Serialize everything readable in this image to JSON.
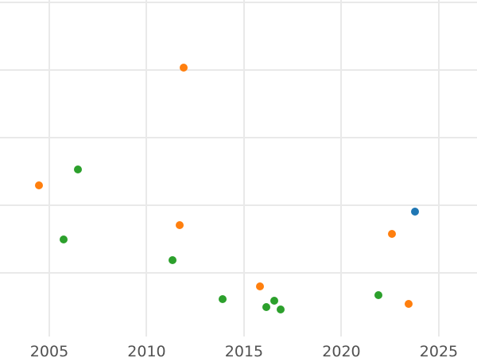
{
  "chart_data": {
    "type": "scatter",
    "title": "",
    "xlabel": "",
    "ylabel": "",
    "legend": "none",
    "grid": true,
    "x_ticks": [
      "2005",
      "2010",
      "2015",
      "2020",
      "2025"
    ],
    "x_tick_values": [
      2005,
      2010,
      2015,
      2020,
      2025
    ],
    "x_range_visible": [
      2002.47,
      2026.96
    ],
    "y_range_visible": [
      -0.26,
      5.04
    ],
    "y_gridlines": [
      1,
      2,
      3,
      4,
      5
    ],
    "y_tick_labels_visible": false,
    "plot_area_y_min": 0.06,
    "colors": {
      "grid": "#e9e9e9",
      "tick_label": "#515151",
      "background": "#ffffff"
    },
    "series": [
      {
        "name": "blue",
        "color": "#1f77b4",
        "points": [
          {
            "x": 2023.78,
            "y": 1.91
          }
        ]
      },
      {
        "name": "orange",
        "color": "#ff7f0e",
        "points": [
          {
            "x": 2004.47,
            "y": 2.29
          },
          {
            "x": 2011.9,
            "y": 4.04
          },
          {
            "x": 2011.69,
            "y": 1.71
          },
          {
            "x": 2015.82,
            "y": 0.8
          },
          {
            "x": 2022.59,
            "y": 1.58
          },
          {
            "x": 2023.45,
            "y": 0.54
          }
        ]
      },
      {
        "name": "green",
        "color": "#2ca02c",
        "points": [
          {
            "x": 2005.73,
            "y": 1.49
          },
          {
            "x": 2006.47,
            "y": 2.53
          },
          {
            "x": 2011.33,
            "y": 1.19
          },
          {
            "x": 2013.9,
            "y": 0.61
          },
          {
            "x": 2016.14,
            "y": 0.49
          },
          {
            "x": 2016.55,
            "y": 0.59
          },
          {
            "x": 2016.88,
            "y": 0.46
          },
          {
            "x": 2021.9,
            "y": 0.67
          }
        ]
      }
    ]
  }
}
